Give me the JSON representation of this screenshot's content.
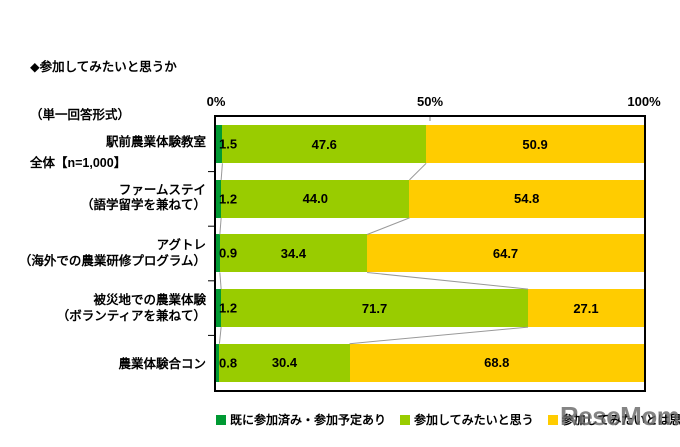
{
  "title": {
    "lines": [
      "◆参加してみたいと思うか",
      "（単一回答形式）",
      "全体【n=1,000】"
    ]
  },
  "chart_data": {
    "type": "bar",
    "variant": "horizontal-stacked",
    "title": "◆参加してみたいと思うか（単一回答形式）全体【n=1,000】",
    "categories": [
      "駅前農業体験教室",
      "ファームステイ（語学留学を兼ねて）",
      "アグトレ（海外での農業研修プログラム）",
      "被災地での農業体験（ボランティアを兼ねて）",
      "農業体験合コン"
    ],
    "category_lines": [
      [
        "駅前農業体験教室"
      ],
      [
        "ファームステイ",
        "（語学留学を兼ねて）"
      ],
      [
        "アグトレ",
        "（海外での農業研修プログラム）"
      ],
      [
        "被災地での農業体験",
        "（ボランティアを兼ねて）"
      ],
      [
        "農業体験合コン"
      ]
    ],
    "series": [
      {
        "name": "既に参加済み・参加予定あり",
        "color": "#009933",
        "values": [
          1.5,
          1.2,
          0.9,
          1.2,
          0.8
        ]
      },
      {
        "name": "参加してみたいと思う",
        "color": "#99CC00",
        "values": [
          47.6,
          44.0,
          34.4,
          71.7,
          30.4
        ]
      },
      {
        "name": "参加してみたいとは思わない",
        "color": "#FFCC00",
        "values": [
          50.9,
          54.8,
          64.7,
          27.1,
          68.8
        ]
      }
    ],
    "xlim": [
      0,
      100
    ],
    "x_ticks": [
      "0%",
      "50%",
      "100%"
    ],
    "value_label_decimals": 1,
    "legend_position": "bottom",
    "series_line_color": "#999999",
    "plot_border_color": "#000000"
  },
  "watermark": {
    "text": "ReseMom."
  }
}
